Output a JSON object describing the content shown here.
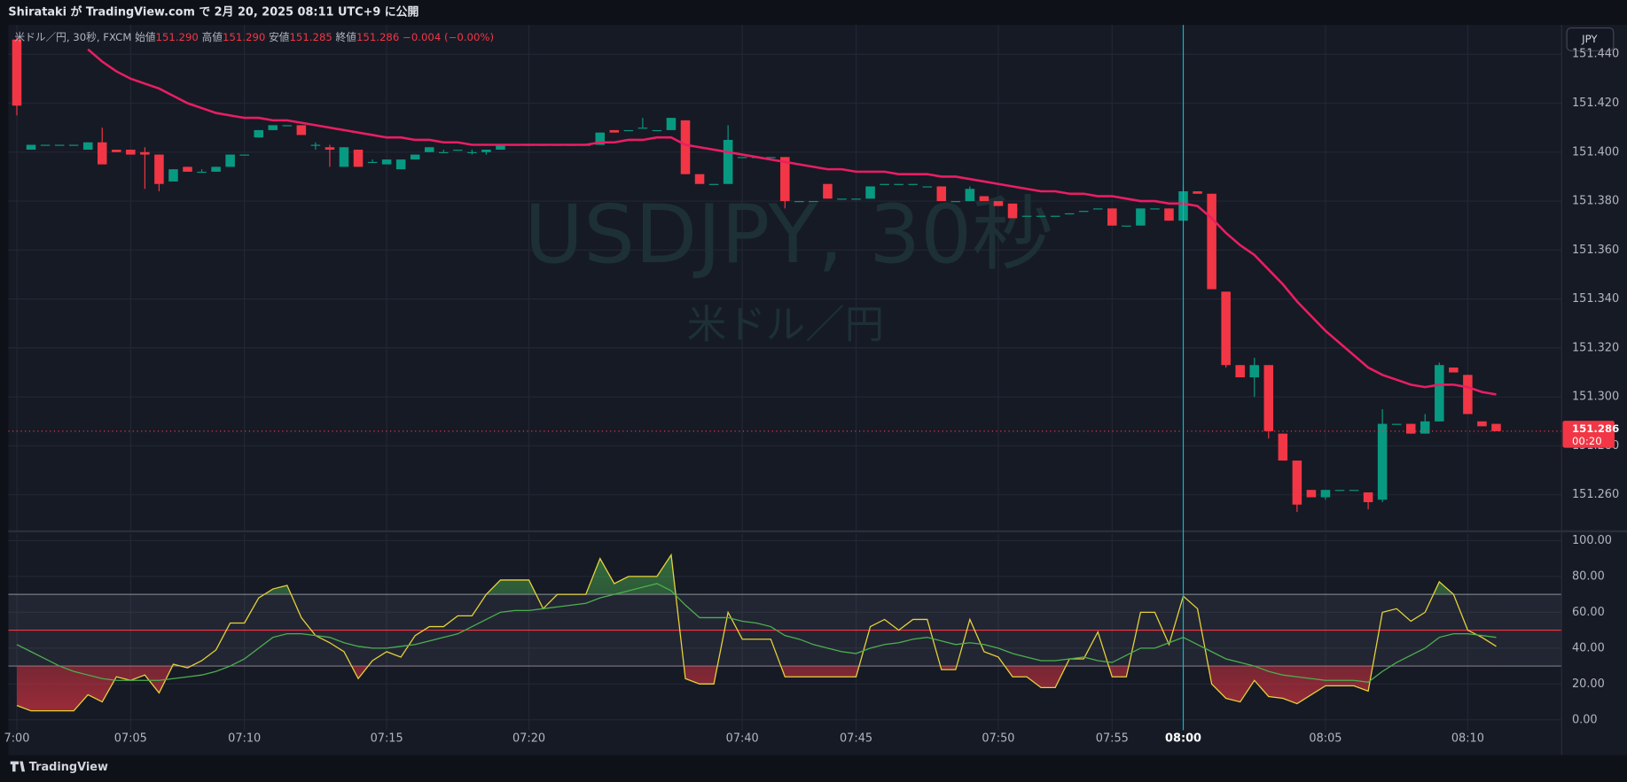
{
  "header": "Shirataki が TradingView.com で 2月 20, 2025 08:11 UTC+9 に公開",
  "footer": "TradingView",
  "currency_button": "JPY",
  "chart_data": [
    {
      "type": "candlestick",
      "watermark": [
        "USDJPY, 30秒",
        "米ドル／円"
      ],
      "legend": {
        "symbol": "米ドル／円, 30秒, FXCM",
        "open_label": "始値",
        "open": "151.290",
        "high_label": "高値",
        "high": "151.290",
        "low_label": "安値",
        "low": "151.285",
        "close_label": "終値",
        "close": "151.286",
        "change": "−0.004 (−0.00%)"
      },
      "up_color": "#089981",
      "down_color": "#f23645",
      "xlim": [
        -0.6,
        108.6
      ],
      "ylim": [
        151.2455,
        151.452
      ],
      "yticks": [
        {
          "value": 151.26,
          "label": "151.260"
        },
        {
          "value": 151.28,
          "label": "151.280"
        },
        {
          "value": 151.3,
          "label": "151.300"
        },
        {
          "value": 151.32,
          "label": "151.320"
        },
        {
          "value": 151.34,
          "label": "151.340"
        },
        {
          "value": 151.36,
          "label": "151.360"
        },
        {
          "value": 151.38,
          "label": "151.380"
        },
        {
          "value": 151.4,
          "label": "151.400"
        },
        {
          "value": 151.42,
          "label": "151.420"
        },
        {
          "value": 151.44,
          "label": "151.440"
        }
      ],
      "grid": true,
      "last_price": 151.286,
      "countdown": "00:20",
      "crosshair_x": 82,
      "ohlc": [
        [
          151.446,
          151.447,
          151.415,
          151.419
        ],
        [
          151.401,
          151.403,
          151.401,
          151.403
        ],
        [
          151.403,
          151.403,
          151.403,
          151.403
        ],
        [
          151.403,
          151.403,
          151.403,
          151.403
        ],
        [
          151.403,
          151.403,
          151.403,
          151.403
        ],
        [
          151.401,
          151.404,
          151.401,
          151.404
        ],
        [
          151.404,
          151.41,
          151.395,
          151.395
        ],
        [
          151.401,
          151.401,
          151.4,
          151.4
        ],
        [
          151.401,
          151.401,
          151.399,
          151.399
        ],
        [
          151.4,
          151.402,
          151.385,
          151.399
        ],
        [
          151.399,
          151.399,
          151.384,
          151.387
        ],
        [
          151.388,
          151.393,
          151.388,
          151.393
        ],
        [
          151.394,
          151.394,
          151.392,
          151.392
        ],
        [
          151.392,
          151.393,
          151.392,
          151.392
        ],
        [
          151.392,
          151.394,
          151.392,
          151.394
        ],
        [
          151.394,
          151.399,
          151.394,
          151.399
        ],
        [
          151.399,
          151.399,
          151.399,
          151.399
        ],
        [
          151.406,
          151.409,
          151.406,
          151.409
        ],
        [
          151.409,
          151.411,
          151.409,
          151.411
        ],
        [
          151.411,
          151.411,
          151.411,
          151.411
        ],
        [
          151.411,
          151.411,
          151.407,
          151.407
        ],
        [
          151.403,
          151.404,
          151.401,
          151.403
        ],
        [
          151.402,
          151.403,
          151.394,
          151.401
        ],
        [
          151.394,
          151.402,
          151.394,
          151.402
        ],
        [
          151.401,
          151.401,
          151.394,
          151.394
        ],
        [
          151.396,
          151.397,
          151.396,
          151.396
        ],
        [
          151.395,
          151.397,
          151.395,
          151.397
        ],
        [
          151.393,
          151.397,
          151.393,
          151.397
        ],
        [
          151.397,
          151.399,
          151.397,
          151.399
        ],
        [
          151.4,
          151.402,
          151.4,
          151.402
        ],
        [
          151.4,
          151.401,
          151.4,
          151.4
        ],
        [
          151.401,
          151.401,
          151.401,
          151.401
        ],
        [
          151.4,
          151.401,
          151.399,
          151.4
        ],
        [
          151.4,
          151.401,
          151.399,
          151.401
        ],
        [
          151.401,
          151.403,
          151.401,
          151.403
        ],
        [
          151.403,
          151.403,
          151.403,
          151.403
        ],
        [
          151.403,
          151.403,
          151.403,
          151.403
        ],
        [
          151.403,
          151.403,
          151.403,
          151.403
        ],
        [
          151.403,
          151.403,
          151.403,
          151.403
        ],
        [
          151.403,
          151.403,
          151.403,
          151.403
        ],
        [
          151.403,
          151.403,
          151.403,
          151.403
        ],
        [
          151.403,
          151.408,
          151.403,
          151.408
        ],
        [
          151.409,
          151.409,
          151.408,
          151.408
        ],
        [
          151.409,
          151.409,
          151.409,
          151.409
        ],
        [
          151.41,
          151.414,
          151.41,
          151.41
        ],
        [
          151.409,
          151.409,
          151.409,
          151.409
        ],
        [
          151.409,
          151.414,
          151.409,
          151.414
        ],
        [
          151.413,
          151.413,
          151.391,
          151.391
        ],
        [
          151.391,
          151.391,
          151.387,
          151.387
        ],
        [
          151.387,
          151.387,
          151.387,
          151.387
        ],
        [
          151.387,
          151.411,
          151.387,
          151.405
        ],
        [
          151.398,
          151.398,
          151.398,
          151.398
        ],
        [
          151.398,
          151.398,
          151.398,
          151.398
        ],
        [
          151.398,
          151.398,
          151.398,
          151.398
        ],
        [
          151.398,
          151.398,
          151.377,
          151.38
        ],
        [
          151.38,
          151.38,
          151.38,
          151.38
        ],
        [
          151.38,
          151.38,
          151.38,
          151.38
        ],
        [
          151.387,
          151.387,
          151.381,
          151.381
        ],
        [
          151.381,
          151.381,
          151.381,
          151.381
        ],
        [
          151.381,
          151.381,
          151.381,
          151.381
        ],
        [
          151.381,
          151.386,
          151.381,
          151.386
        ],
        [
          151.387,
          151.387,
          151.387,
          151.387
        ],
        [
          151.387,
          151.387,
          151.387,
          151.387
        ],
        [
          151.387,
          151.387,
          151.387,
          151.387
        ],
        [
          151.386,
          151.386,
          151.386,
          151.386
        ],
        [
          151.386,
          151.386,
          151.38,
          151.38
        ],
        [
          151.38,
          151.38,
          151.38,
          151.38
        ],
        [
          151.38,
          151.386,
          151.38,
          151.385
        ],
        [
          151.382,
          151.382,
          151.38,
          151.38
        ],
        [
          151.38,
          151.38,
          151.378,
          151.378
        ],
        [
          151.379,
          151.379,
          151.373,
          151.373
        ],
        [
          151.374,
          151.374,
          151.374,
          151.374
        ],
        [
          151.374,
          151.374,
          151.374,
          151.374
        ],
        [
          151.374,
          151.374,
          151.374,
          151.374
        ],
        [
          151.375,
          151.375,
          151.375,
          151.375
        ],
        [
          151.376,
          151.376,
          151.376,
          151.376
        ],
        [
          151.377,
          151.377,
          151.377,
          151.377
        ],
        [
          151.377,
          151.377,
          151.37,
          151.37
        ],
        [
          151.37,
          151.37,
          151.37,
          151.37
        ],
        [
          151.37,
          151.377,
          151.37,
          151.377
        ],
        [
          151.377,
          151.377,
          151.377,
          151.377
        ],
        [
          151.377,
          151.377,
          151.372,
          151.372
        ],
        [
          151.372,
          151.386,
          151.372,
          151.384
        ],
        [
          151.384,
          151.384,
          151.383,
          151.383
        ],
        [
          151.383,
          151.383,
          151.344,
          151.344
        ],
        [
          151.343,
          151.343,
          151.312,
          151.313
        ],
        [
          151.313,
          151.313,
          151.308,
          151.308
        ],
        [
          151.308,
          151.316,
          151.3,
          151.313
        ],
        [
          151.313,
          151.313,
          151.283,
          151.286
        ],
        [
          151.285,
          151.285,
          151.274,
          151.274
        ],
        [
          151.274,
          151.274,
          151.253,
          151.256
        ],
        [
          151.262,
          151.262,
          151.259,
          151.259
        ],
        [
          151.259,
          151.262,
          151.258,
          151.262
        ],
        [
          151.262,
          151.262,
          151.262,
          151.262
        ],
        [
          151.262,
          151.262,
          151.262,
          151.262
        ],
        [
          151.261,
          151.261,
          151.254,
          151.257
        ],
        [
          151.258,
          151.295,
          151.257,
          151.289
        ],
        [
          151.289,
          151.289,
          151.289,
          151.289
        ],
        [
          151.289,
          151.289,
          151.285,
          151.285
        ],
        [
          151.285,
          151.293,
          151.285,
          151.29
        ],
        [
          151.29,
          151.314,
          151.29,
          151.313
        ],
        [
          151.312,
          151.312,
          151.31,
          151.31
        ],
        [
          151.309,
          151.309,
          151.293,
          151.293
        ],
        [
          151.29,
          151.29,
          151.288,
          151.288
        ],
        [
          151.289,
          151.289,
          151.286,
          151.286
        ]
      ],
      "series": [
        {
          "color": "#e91e63",
          "values": [
            null,
            null,
            null,
            null,
            null,
            151.442,
            151.437,
            151.433,
            151.43,
            151.428,
            151.426,
            151.423,
            151.42,
            151.418,
            151.416,
            151.415,
            151.414,
            151.414,
            151.413,
            151.413,
            151.412,
            151.411,
            151.41,
            151.409,
            151.408,
            151.407,
            151.406,
            151.406,
            151.405,
            151.405,
            151.404,
            151.404,
            151.403,
            151.403,
            151.403,
            151.403,
            151.403,
            151.403,
            151.403,
            151.403,
            151.403,
            151.404,
            151.404,
            151.405,
            151.405,
            151.406,
            151.406,
            151.403,
            151.402,
            151.401,
            151.4,
            151.399,
            151.398,
            151.397,
            151.396,
            151.395,
            151.394,
            151.393,
            151.393,
            151.392,
            151.392,
            151.392,
            151.391,
            151.391,
            151.391,
            151.39,
            151.39,
            151.389,
            151.388,
            151.387,
            151.386,
            151.385,
            151.384,
            151.384,
            151.383,
            151.383,
            151.382,
            151.382,
            151.381,
            151.38,
            151.38,
            151.379,
            151.379,
            151.378,
            151.373,
            151.367,
            151.362,
            151.358,
            151.352,
            151.346,
            151.339,
            151.333,
            151.327,
            151.322,
            151.317,
            151.312,
            151.309,
            151.307,
            151.305,
            151.304,
            151.305,
            151.305,
            151.304,
            151.302,
            151.301
          ]
        }
      ]
    },
    {
      "type": "line",
      "xlim": [
        -0.6,
        108.6
      ],
      "ylim": [
        -5.8,
        104
      ],
      "yticks": [
        {
          "value": 0,
          "label": "0.00"
        },
        {
          "value": 20,
          "label": "20.00"
        },
        {
          "value": 40,
          "label": "40.00"
        },
        {
          "value": 60,
          "label": "60.00"
        },
        {
          "value": 80,
          "label": "80.00"
        },
        {
          "value": 100,
          "label": "100.00"
        }
      ],
      "xticks": [
        {
          "value": 0,
          "label": "7:00"
        },
        {
          "value": 8,
          "label": "07:05"
        },
        {
          "value": 16,
          "label": "07:10"
        },
        {
          "value": 26,
          "label": "07:15"
        },
        {
          "value": 36,
          "label": "07:20"
        },
        {
          "value": 51,
          "label": "07:40"
        },
        {
          "value": 59,
          "label": "07:45"
        },
        {
          "value": 69,
          "label": "07:50"
        },
        {
          "value": 77,
          "label": "07:55"
        },
        {
          "value": 82,
          "label": "08:00"
        },
        {
          "value": 92,
          "label": "08:05"
        },
        {
          "value": 102,
          "label": "08:10"
        }
      ],
      "levels": [
        {
          "value": 70,
          "color": "#787b86"
        },
        {
          "value": 50,
          "color": "#f23645"
        },
        {
          "value": 30,
          "color": "#787b86"
        }
      ],
      "series": [
        {
          "color": "#e6d23a",
          "values": [
            8,
            5,
            5,
            5,
            5,
            14,
            10,
            24,
            22,
            25,
            15,
            31,
            29,
            33,
            39,
            54,
            54,
            68,
            73,
            75,
            57,
            47,
            43,
            38,
            23,
            33,
            38,
            35,
            47,
            52,
            52,
            58,
            58,
            70,
            78,
            78,
            78,
            62,
            70,
            70,
            70,
            90,
            76,
            80,
            80,
            80,
            92,
            23,
            20,
            20,
            60,
            45,
            45,
            45,
            24,
            24,
            24,
            24,
            24,
            24,
            52,
            56,
            50,
            56,
            56,
            28,
            28,
            56,
            38,
            35,
            24,
            24,
            18,
            18,
            34,
            34,
            49,
            24,
            24,
            60,
            60,
            42,
            69,
            62,
            20,
            12,
            10,
            22,
            13,
            12,
            9,
            14,
            19,
            19,
            19,
            16,
            60,
            62,
            55,
            60,
            77,
            70,
            50,
            46,
            41
          ]
        },
        {
          "color": "#4caf50",
          "values": [
            42,
            38,
            34,
            30,
            27,
            25,
            23,
            22,
            22,
            22,
            22,
            23,
            24,
            25,
            27,
            30,
            34,
            40,
            46,
            48,
            48,
            47,
            46,
            43,
            41,
            40,
            40,
            41,
            42,
            44,
            46,
            48,
            52,
            56,
            60,
            61,
            61,
            62,
            63,
            64,
            65,
            68,
            70,
            72,
            74,
            76,
            72,
            64,
            57,
            57,
            57,
            55,
            54,
            52,
            47,
            45,
            42,
            40,
            38,
            37,
            40,
            42,
            43,
            45,
            46,
            44,
            42,
            43,
            42,
            40,
            37,
            35,
            33,
            33,
            34,
            35,
            33,
            32,
            36,
            40,
            40,
            43,
            46,
            42,
            38,
            34,
            32,
            30,
            27,
            25,
            24,
            23,
            22,
            22,
            22,
            21,
            27,
            32,
            36,
            40,
            46,
            48,
            48,
            47,
            46
          ]
        }
      ]
    }
  ]
}
